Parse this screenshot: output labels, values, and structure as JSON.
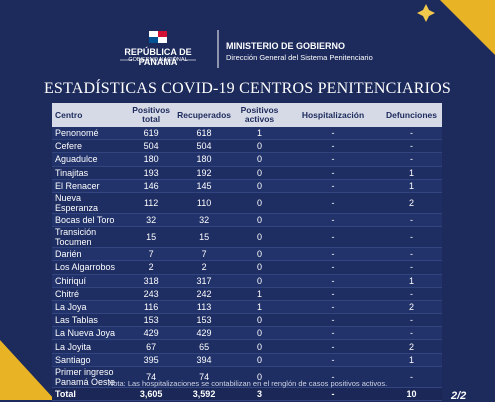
{
  "header": {
    "country": "REPÚBLICA DE PANAMÁ",
    "government": "GOBIERNO NACIONAL",
    "ministry": "MINISTERIO DE GOBIERNO",
    "department": "Dirección General del Sistema Penitenciario"
  },
  "title": "ESTADÍSTICAS COVID-19 CENTROS PENITENCIARIOS",
  "table": {
    "columns": [
      "Centro",
      "Positivos total",
      "Recuperados",
      "Positivos activos",
      "Hospitalización",
      "Defunciones"
    ],
    "rows": [
      [
        "Penonomé",
        "619",
        "618",
        "1",
        "-",
        "-"
      ],
      [
        "Cefere",
        "504",
        "504",
        "0",
        "-",
        "-"
      ],
      [
        "Aguadulce",
        "180",
        "180",
        "0",
        "-",
        "-"
      ],
      [
        "Tinajitas",
        "193",
        "192",
        "0",
        "-",
        "1"
      ],
      [
        "El Renacer",
        "146",
        "145",
        "0",
        "-",
        "1"
      ],
      [
        "Nueva Esperanza",
        "112",
        "110",
        "0",
        "-",
        "2"
      ],
      [
        "Bocas del Toro",
        "32",
        "32",
        "0",
        "-",
        "-"
      ],
      [
        "Transición Tocumen",
        "15",
        "15",
        "0",
        "-",
        "-"
      ],
      [
        "Darién",
        "7",
        "7",
        "0",
        "-",
        "-"
      ],
      [
        "Los Algarrobos",
        "2",
        "2",
        "0",
        "-",
        "-"
      ],
      [
        "Chiriquí",
        "318",
        "317",
        "0",
        "-",
        "1"
      ],
      [
        "Chitré",
        "243",
        "242",
        "1",
        "-",
        "-"
      ],
      [
        "La Joya",
        "116",
        "113",
        "1",
        "-",
        "2"
      ],
      [
        "Las Tablas",
        "153",
        "153",
        "0",
        "-",
        "-"
      ],
      [
        "La Nueva Joya",
        "429",
        "429",
        "0",
        "-",
        "-"
      ],
      [
        "La Joyita",
        "67",
        "65",
        "0",
        "-",
        "2"
      ],
      [
        "Santiago",
        "395",
        "394",
        "0",
        "-",
        "1"
      ],
      [
        "Primer ingreso Panamá Oeste",
        "74",
        "74",
        "0",
        "-",
        "-"
      ]
    ],
    "total": [
      "Total",
      "3,605",
      "3,592",
      "3",
      "-",
      "10"
    ]
  },
  "note": "Nota: Las hospitalizaciones se contabilizan en el renglón de casos positivos activos.",
  "page": "2/2"
}
